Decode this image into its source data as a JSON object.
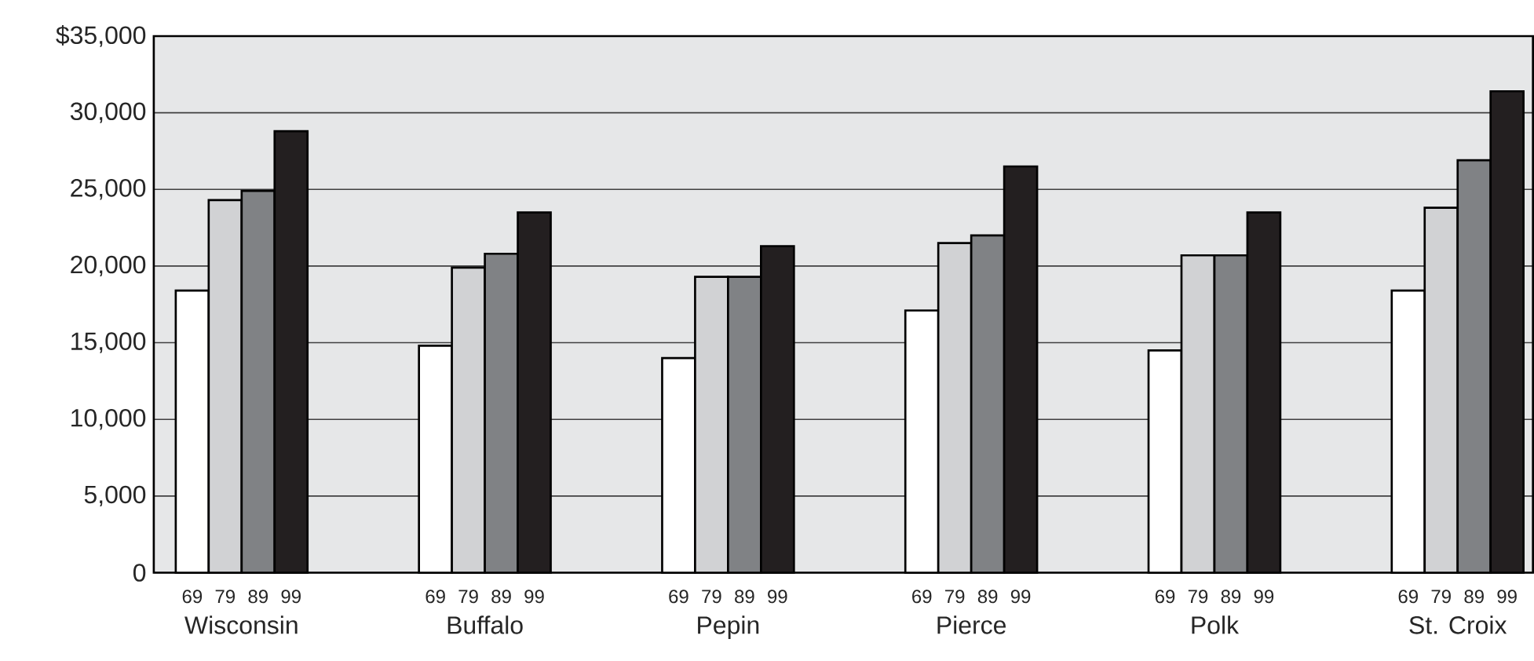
{
  "chart_data": {
    "type": "bar",
    "categories": [
      "Wisconsin",
      "Buffalo",
      "Pepin",
      "Pierce",
      "Polk",
      "St. Croix"
    ],
    "series": [
      {
        "name": "69",
        "color": "#ffffff",
        "values": [
          18400,
          14800,
          14000,
          17100,
          14500,
          18400
        ]
      },
      {
        "name": "79",
        "color": "#d1d2d4",
        "values": [
          24300,
          19900,
          19300,
          21500,
          20700,
          23800
        ]
      },
      {
        "name": "89",
        "color": "#808285",
        "values": [
          24900,
          20800,
          19300,
          22000,
          20700,
          26900
        ]
      },
      {
        "name": "99",
        "color": "#231f20",
        "values": [
          28800,
          23500,
          21300,
          26500,
          23500,
          31400
        ]
      }
    ],
    "ylim": [
      0,
      35000
    ],
    "yticks": [
      0,
      {
        "value": 5000,
        "label": "5,000"
      },
      {
        "value": 10000,
        "label": "10,000"
      },
      {
        "value": 15000,
        "label": "15,000"
      },
      {
        "value": 20000,
        "label": "20,000"
      },
      {
        "value": 25000,
        "label": "25,000"
      },
      {
        "value": 30000,
        "label": "30,000"
      },
      {
        "value": 35000,
        "label": "$35,000"
      }
    ],
    "grid": "y"
  }
}
